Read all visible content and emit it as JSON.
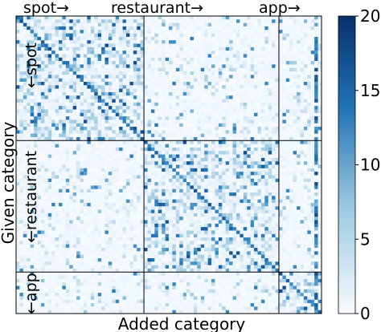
{
  "chart_data": {
    "type": "heatmap",
    "xlabel": "Added category",
    "ylabel": "Given category",
    "top_labels": [
      "spot→",
      "restaurant→",
      "app→"
    ],
    "side_labels": [
      "←spot",
      "←restaurant",
      "←app"
    ],
    "groups": [
      {
        "name": "spot",
        "size": 36
      },
      {
        "name": "restaurant",
        "size": 38
      },
      {
        "name": "app",
        "size": 12
      }
    ],
    "colorbar": {
      "min": 0,
      "max": 20,
      "ticks": [
        0,
        5,
        10,
        15,
        20
      ],
      "low_color": "#f7fbff",
      "high_color": "#08306b"
    },
    "grid": false
  }
}
